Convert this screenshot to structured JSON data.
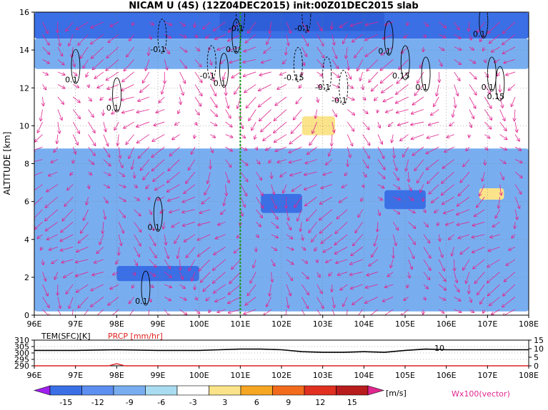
{
  "chart_data": [
    {
      "type": "heatmap",
      "title": "NICAM U (4S) (12Z04DEC2015) init:00Z01DEC2015 slab",
      "xlabel": "",
      "ylabel": "ALTITUDE [km]",
      "x_ticks": [
        "96E",
        "97E",
        "98E",
        "99E",
        "100E",
        "101E",
        "102E",
        "103E",
        "104E",
        "105E",
        "106E",
        "107E",
        "108E"
      ],
      "x_range": [
        96,
        108
      ],
      "y_ticks": [
        "0",
        "2",
        "4",
        "6",
        "8",
        "10",
        "12",
        "14",
        "16"
      ],
      "y_range": [
        0,
        16
      ],
      "grid": true,
      "reference_line_x": 101,
      "colors": {
        "neg_strong": "#3a6fe6",
        "neg_mid": "#78aef0",
        "neg_weak": "#a9dcf0",
        "pos_weak": "#fbe38a",
        "contour": "#000000",
        "vector": "#e0268f",
        "ref_line": "#1a9a1a"
      },
      "bands": [
        {
          "range": [
            -9,
            -6
          ],
          "x0": 96,
          "x1": 108,
          "y0": 14.6,
          "y1": 16.0
        },
        {
          "range": [
            -12,
            -9
          ],
          "x0": 100.5,
          "x1": 104.5,
          "y0": 15.0,
          "y1": 16.0
        },
        {
          "range": [
            -6,
            -3
          ],
          "x0": 96,
          "x1": 108,
          "y0": 13.0,
          "y1": 14.6
        },
        {
          "range": [
            -6,
            -3
          ],
          "x0": 96,
          "x1": 108,
          "y0": 0.2,
          "y1": 8.8
        },
        {
          "range": [
            -9,
            -6
          ],
          "x0": 98,
          "x1": 100,
          "y0": 1.8,
          "y1": 2.6
        },
        {
          "range": [
            -9,
            -6
          ],
          "x0": 101.5,
          "x1": 102.5,
          "y0": 5.4,
          "y1": 6.4
        },
        {
          "range": [
            -9,
            -6
          ],
          "x0": 104.5,
          "x1": 105.5,
          "y0": 5.6,
          "y1": 6.6
        },
        {
          "range": [
            3,
            6
          ],
          "x0": 102.5,
          "x1": 103.3,
          "y0": 9.5,
          "y1": 10.5
        },
        {
          "range": [
            3,
            6
          ],
          "x0": 106.8,
          "x1": 107.4,
          "y0": 6.1,
          "y1": 6.7
        }
      ],
      "contour_labels": [
        {
          "text": "-0.1",
          "x": 100.9,
          "y": 15.0
        },
        {
          "text": "-0.1",
          "x": 102.5,
          "y": 15.0
        },
        {
          "text": "0.1",
          "x": 106.8,
          "y": 14.7
        },
        {
          "text": "-0.1",
          "x": 99.0,
          "y": 13.9
        },
        {
          "text": "0.1",
          "x": 100.8,
          "y": 13.9
        },
        {
          "text": "0.1",
          "x": 104.5,
          "y": 13.8
        },
        {
          "text": "-0.1",
          "x": 100.2,
          "y": 12.5
        },
        {
          "text": "0.1",
          "x": 96.9,
          "y": 12.3
        },
        {
          "text": "0.1",
          "x": 100.5,
          "y": 12.1
        },
        {
          "text": "-0.15",
          "x": 102.3,
          "y": 12.4
        },
        {
          "text": "0.15",
          "x": 104.9,
          "y": 12.5
        },
        {
          "text": "-0.1",
          "x": 103.0,
          "y": 11.9
        },
        {
          "text": "0.1",
          "x": 105.4,
          "y": 11.9
        },
        {
          "text": "-0.1",
          "x": 103.4,
          "y": 11.2
        },
        {
          "text": "0.1",
          "x": 107.0,
          "y": 11.9
        },
        {
          "text": "0.15",
          "x": 107.2,
          "y": 11.4
        },
        {
          "text": "0.1",
          "x": 97.9,
          "y": 10.8
        },
        {
          "text": "0.1",
          "x": 98.9,
          "y": 4.5
        },
        {
          "text": "0.1",
          "x": 98.6,
          "y": 0.6
        }
      ],
      "vector_legend": "Wx100(vector)",
      "color_scale": {
        "unit": "[m/s]",
        "labels": [
          "-15",
          "-12",
          "-9",
          "-6",
          "-3",
          "3",
          "6",
          "9",
          "12",
          "15"
        ],
        "colors": [
          "#a020f0",
          "#3a6fe6",
          "#5c8ff0",
          "#78aef0",
          "#a9dcf0",
          "#ffffff",
          "#fbe38a",
          "#f5a623",
          "#f26b1d",
          "#e03020",
          "#b81c1c",
          "#e0268f"
        ]
      }
    },
    {
      "type": "line",
      "xlabel": "",
      "x_ticks": [
        "96E",
        "97E",
        "98E",
        "99E",
        "100E",
        "101E",
        "102E",
        "103E",
        "104E",
        "105E",
        "106E",
        "107E",
        "108E"
      ],
      "x_range": [
        96,
        108
      ],
      "left_axis": {
        "label": "TEM(SFC)[K]",
        "ticks": [
          "290",
          "295",
          "300",
          "305",
          "310"
        ],
        "range": [
          290,
          310
        ]
      },
      "right_axis": {
        "label": "PRCP [mm/hr]",
        "ticks": [
          "0",
          "5",
          "10",
          "15"
        ],
        "range": [
          0,
          15
        ]
      },
      "annotation": "10",
      "series": [
        {
          "name": "TEM(SFC)[K]",
          "color": "#000000",
          "x": [
            96,
            97,
            98,
            99,
            100,
            100.5,
            101,
            101.5,
            102,
            102.5,
            103,
            103.5,
            104,
            104.5,
            105,
            105.5,
            106,
            107,
            108
          ],
          "values": [
            302,
            302,
            302.5,
            302,
            302,
            302.5,
            303,
            303,
            302.5,
            301,
            300.5,
            300.5,
            301,
            300.5,
            302,
            303,
            302.5,
            302.5,
            302.5
          ]
        },
        {
          "name": "PRCP [mm/hr]",
          "color": "#e02020",
          "x": [
            96,
            97,
            97.8,
            98,
            98.2,
            99,
            100,
            101,
            102,
            103,
            104,
            105,
            106,
            107,
            108
          ],
          "values": [
            0,
            0,
            0,
            1.2,
            0,
            0,
            0,
            0,
            0,
            0,
            0,
            0,
            0,
            0,
            0
          ]
        }
      ]
    }
  ]
}
